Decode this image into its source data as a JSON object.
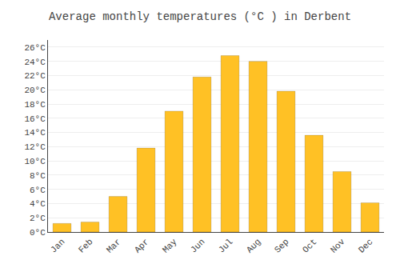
{
  "chart_data": {
    "type": "bar",
    "title": "Average monthly temperatures (°C ) in Derbent",
    "categories": [
      "Jan",
      "Feb",
      "Mar",
      "Apr",
      "May",
      "Jun",
      "Jul",
      "Aug",
      "Sep",
      "Oct",
      "Nov",
      "Dec"
    ],
    "values": [
      1.2,
      1.4,
      5.0,
      11.8,
      17.0,
      21.8,
      24.8,
      24.0,
      19.8,
      13.6,
      8.5,
      4.1
    ],
    "color": "#FFC125",
    "ylim": [
      0,
      27
    ],
    "yticks": [
      {
        "value": 0,
        "label": "0°C"
      },
      {
        "value": 2,
        "label": "2°C"
      },
      {
        "value": 4,
        "label": "4°C"
      },
      {
        "value": 6,
        "label": "6°C"
      },
      {
        "value": 8,
        "label": "8°C"
      },
      {
        "value": 10,
        "label": "10°C"
      },
      {
        "value": 12,
        "label": "12°C"
      },
      {
        "value": 14,
        "label": "14°C"
      },
      {
        "value": 16,
        "label": "16°C"
      },
      {
        "value": 18,
        "label": "18°C"
      },
      {
        "value": 20,
        "label": "20°C"
      },
      {
        "value": 22,
        "label": "22°C"
      },
      {
        "value": 24,
        "label": "24°C"
      },
      {
        "value": 26,
        "label": "26°C"
      }
    ],
    "grid": true
  }
}
